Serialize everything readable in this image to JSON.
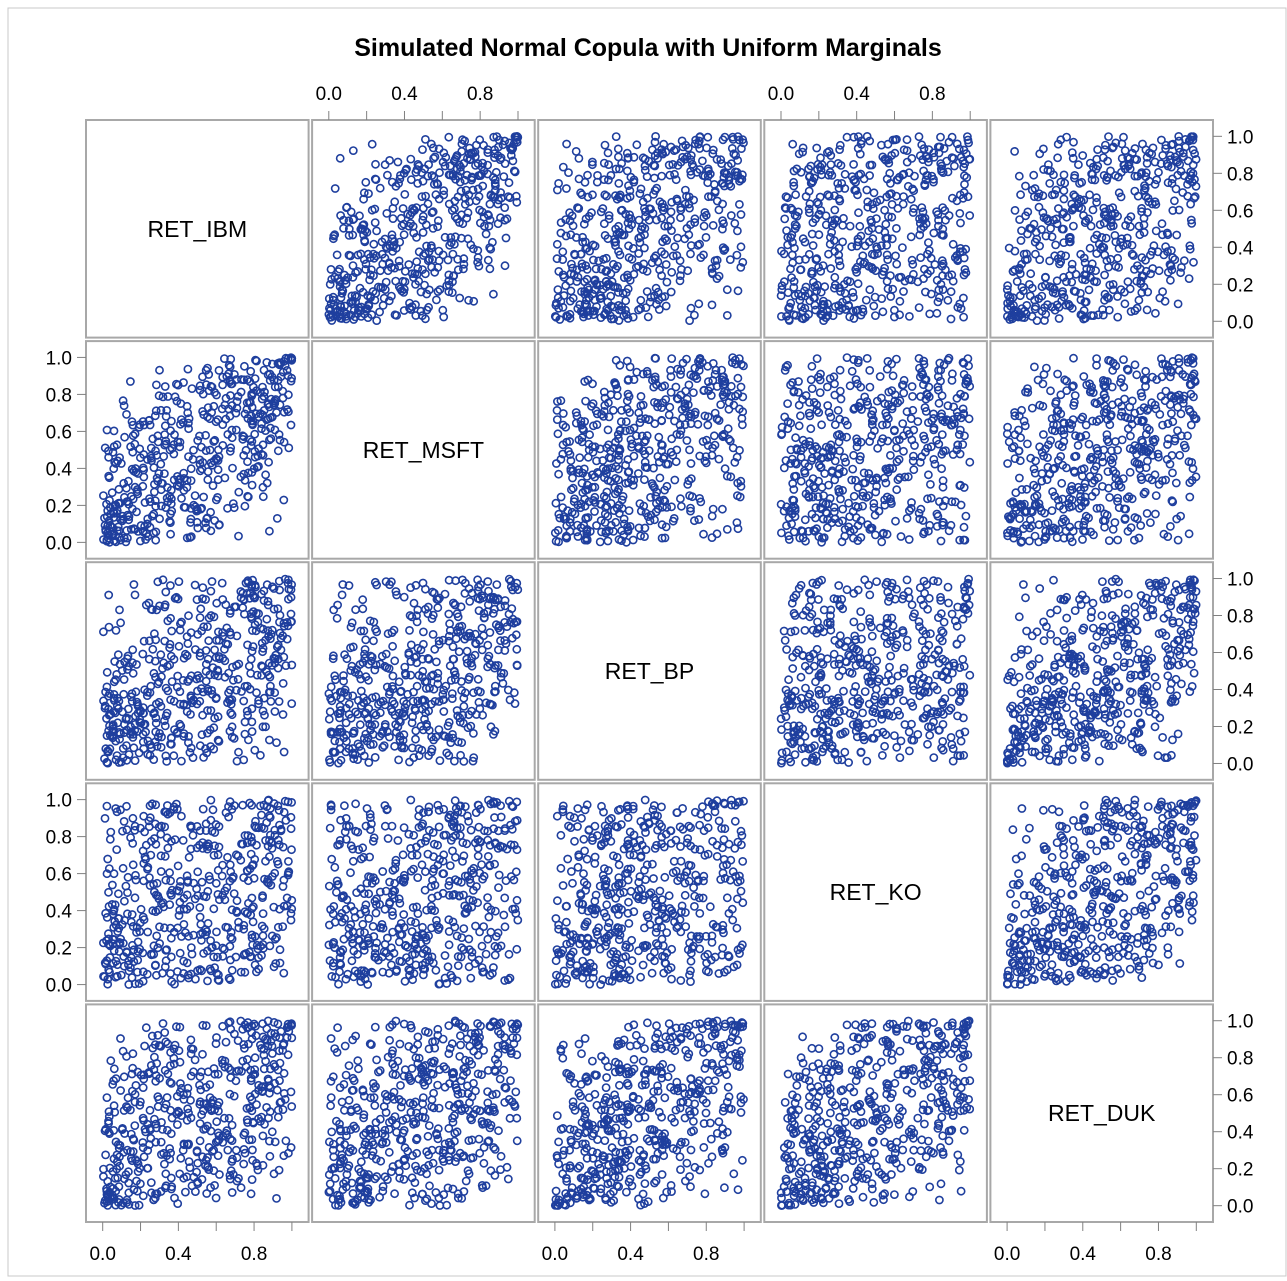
{
  "chart_data": {
    "type": "scatter",
    "subtype": "scatter-matrix",
    "title": "Simulated Normal Copula with Uniform Marginals",
    "variables": [
      "RET_IBM",
      "RET_MSFT",
      "RET_BP",
      "RET_KO",
      "RET_DUK"
    ],
    "axis_range": [
      0,
      1
    ],
    "x_tick_labels": [
      "0.0",
      "0.4",
      "0.8"
    ],
    "x_tick_values": [
      0.0,
      0.2,
      0.4,
      0.6,
      0.8,
      1.0
    ],
    "y_tick_labels": [
      "0.0",
      "0.2",
      "0.4",
      "0.6",
      "0.8",
      "1.0"
    ],
    "y_tick_values": [
      0.0,
      0.2,
      0.4,
      0.6,
      0.8,
      1.0
    ],
    "marker": "open-circle",
    "marker_color": "#1f3f9e",
    "grid": false,
    "legend": "none",
    "n_points_per_panel": 500,
    "pairwise_correlation": {
      "RET_IBM-RET_MSFT": 0.6,
      "RET_IBM-RET_BP": 0.45,
      "RET_IBM-RET_KO": 0.2,
      "RET_IBM-RET_DUK": 0.4,
      "RET_MSFT-RET_BP": 0.4,
      "RET_MSFT-RET_KO": 0.25,
      "RET_MSFT-RET_DUK": 0.35,
      "RET_BP-RET_KO": 0.2,
      "RET_BP-RET_DUK": 0.45,
      "RET_KO-RET_DUK": 0.45
    }
  }
}
